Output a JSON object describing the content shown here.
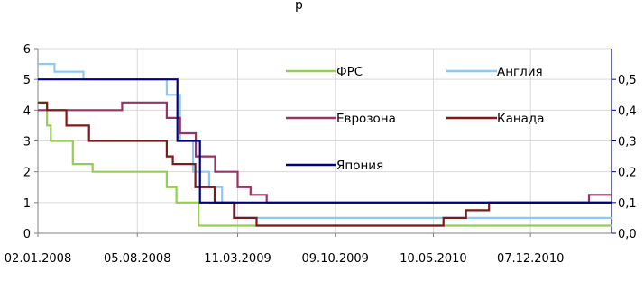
{
  "chart_data": {
    "type": "line",
    "title": "р",
    "grid": true,
    "xaxis": {
      "start": "2008-01-02",
      "end": "2011-06-01",
      "ticks": [
        {
          "date": "2008-01-02",
          "label": "02.01.2008"
        },
        {
          "date": "2008-08-05",
          "label": "05.08.2008"
        },
        {
          "date": "2009-03-11",
          "label": "11.03.2009"
        },
        {
          "date": "2009-10-09",
          "label": "09.10.2009"
        },
        {
          "date": "2010-05-10",
          "label": "10.05.2010"
        },
        {
          "date": "2010-12-07",
          "label": "07.12.2010"
        }
      ]
    },
    "yaxis_left": {
      "min": 0,
      "max": 6,
      "ticks": [
        "0",
        "1",
        "2",
        "3",
        "4",
        "5",
        "6"
      ]
    },
    "yaxis_right": {
      "min": 0,
      "max": 0.6,
      "ticks": [
        "0,0",
        "0,1",
        "0,2",
        "0,3",
        "0,4",
        "0,5"
      ]
    },
    "series": [
      {
        "name": "ФРС",
        "color": "#92d050",
        "axis": "left",
        "points": [
          [
            "2008-01-02",
            4.25
          ],
          [
            "2008-01-22",
            3.5
          ],
          [
            "2008-01-30",
            3.0
          ],
          [
            "2008-03-18",
            2.25
          ],
          [
            "2008-04-30",
            2.0
          ],
          [
            "2008-10-08",
            1.5
          ],
          [
            "2008-10-29",
            1.0
          ],
          [
            "2008-12-16",
            0.25
          ],
          [
            "2011-06-01",
            0.25
          ]
        ]
      },
      {
        "name": "Англия",
        "color": "#8ec9f5",
        "axis": "left",
        "points": [
          [
            "2008-01-02",
            5.5
          ],
          [
            "2008-02-07",
            5.25
          ],
          [
            "2008-04-10",
            5.0
          ],
          [
            "2008-10-08",
            4.5
          ],
          [
            "2008-11-06",
            3.0
          ],
          [
            "2008-12-04",
            2.0
          ],
          [
            "2009-01-08",
            1.5
          ],
          [
            "2009-02-05",
            1.0
          ],
          [
            "2009-03-05",
            0.5
          ],
          [
            "2011-06-01",
            0.5
          ]
        ]
      },
      {
        "name": "Еврозона",
        "color": "#993366",
        "axis": "left",
        "points": [
          [
            "2008-01-02",
            4.0
          ],
          [
            "2008-07-03",
            4.25
          ],
          [
            "2008-10-08",
            3.75
          ],
          [
            "2008-11-06",
            3.25
          ],
          [
            "2008-12-10",
            2.5
          ],
          [
            "2009-01-21",
            2.0
          ],
          [
            "2009-03-11",
            1.5
          ],
          [
            "2009-04-08",
            1.25
          ],
          [
            "2009-05-13",
            1.0
          ],
          [
            "2011-04-13",
            1.25
          ],
          [
            "2011-06-01",
            1.25
          ]
        ]
      },
      {
        "name": "Канада",
        "color": "#7f1a1a",
        "axis": "left",
        "points": [
          [
            "2008-01-02",
            4.25
          ],
          [
            "2008-01-22",
            4.0
          ],
          [
            "2008-03-04",
            3.5
          ],
          [
            "2008-04-22",
            3.0
          ],
          [
            "2008-09-15",
            3.0
          ],
          [
            "2008-10-08",
            2.5
          ],
          [
            "2008-10-21",
            2.25
          ],
          [
            "2008-12-09",
            1.5
          ],
          [
            "2009-01-20",
            1.0
          ],
          [
            "2009-03-03",
            0.5
          ],
          [
            "2009-04-21",
            0.25
          ],
          [
            "2010-06-01",
            0.5
          ],
          [
            "2010-07-20",
            0.75
          ],
          [
            "2010-09-08",
            1.0
          ],
          [
            "2011-06-01",
            1.0
          ]
        ]
      },
      {
        "name": "Япония",
        "color": "#000080",
        "axis": "right",
        "points": [
          [
            "2008-01-02",
            0.5
          ],
          [
            "2008-10-31",
            0.3
          ],
          [
            "2008-12-19",
            0.1
          ],
          [
            "2011-06-01",
            0.1
          ]
        ]
      }
    ],
    "legend": {
      "position": "top-right",
      "order": [
        [
          "ФРС",
          "Англия"
        ],
        [
          "Еврозона",
          "Канада"
        ],
        [
          "Япония"
        ]
      ]
    }
  }
}
